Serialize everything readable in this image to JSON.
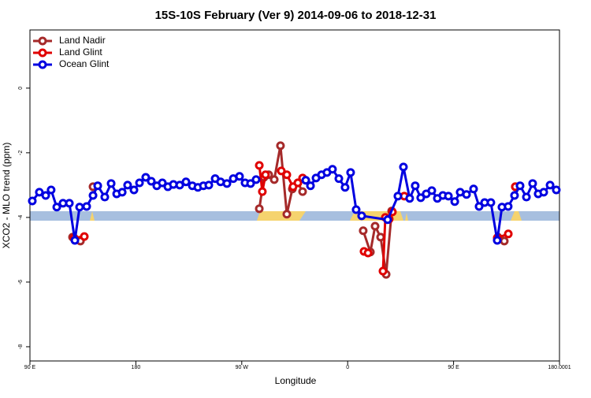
{
  "chart_data": {
    "type": "line",
    "title": "15S-10S February (Ver 9)   2014-09-06 to 2018-12-31",
    "x_label": "Longitude",
    "y_label": "XCO2 - MLO trend (ppm)",
    "xlim": [
      90,
      540
    ],
    "xticks": [
      {
        "value": 90,
        "label": "90 E"
      },
      180,
      {
        "value": 270,
        "label": "90 W"
      },
      {
        "value": 360,
        "label": "0"
      },
      {
        "value": 450,
        "label": "90 E"
      },
      180.0001
    ],
    "ylim": [
      -8.44,
      1.8
    ],
    "yticks": [
      0,
      -2,
      -4,
      -6,
      -8
    ],
    "legend": "top-left",
    "series": [
      {
        "name": "Land Nadir",
        "color": "#a52a2a",
        "x": [
          126.2,
          132.9,
          null,
          143.6,
          null,
          284.9,
          288.9,
          292.9,
          297.6,
          302.9,
          308.3,
          313.0,
          317.7,
          321.7,
          null,
          373.2,
          379.3,
          383.3,
          388.0,
          392.7,
          397.4,
          null,
          487.7,
          493.1,
          null,
          502.5
        ],
        "values": [
          -4.61,
          -4.73,
          null,
          -3.05,
          null,
          -3.73,
          -2.76,
          -2.68,
          -2.83,
          -1.78,
          -3.9,
          -3.12,
          -2.93,
          -3.2,
          null,
          -4.41,
          -5.07,
          -4.27,
          -4.61,
          -5.76,
          -3.8,
          null,
          -4.61,
          -4.73,
          null,
          -3.05
        ]
      },
      {
        "name": "Land Glint",
        "color": "#e00000",
        "x": [
          127.5,
          136.2,
          null,
          284.9,
          287.5,
          290.2,
          null,
          303.6,
          308.3,
          313.6,
          317.7,
          321.7,
          null,
          373.9,
          377.3,
          null,
          390.0,
          392.0,
          395.3,
          398.0,
          null,
          408.1,
          null,
          487.1,
          496.5,
          null,
          502.5
        ],
        "values": [
          -4.63,
          -4.59,
          null,
          -2.39,
          -3.2,
          -2.68,
          null,
          -2.56,
          -2.68,
          -3.05,
          -2.93,
          -2.78,
          null,
          -5.05,
          -5.1,
          null,
          -5.66,
          -4.0,
          -4.05,
          -3.83,
          null,
          -3.34,
          null,
          -4.63,
          -4.51,
          null,
          -3.05
        ]
      },
      {
        "name": "Ocean Glint",
        "color": "#0000e0",
        "x": [
          92.0,
          98.0,
          103.4,
          108.0,
          112.8,
          118.1,
          123.5,
          128.2,
          132.2,
          138.2,
          143.6,
          147.6,
          153.6,
          159.0,
          163.7,
          168.4,
          173.0,
          178.4,
          183.1,
          188.4,
          193.1,
          197.8,
          202.5,
          207.2,
          211.9,
          217.3,
          222.6,
          228.0,
          232.7,
          237.4,
          242.0,
          247.4,
          252.0,
          257.4,
          262.8,
          268.1,
          272.8,
          277.5,
          282.2,
          null,
          324.4,
          328.4,
          333.1,
          337.8,
          342.4,
          347.1,
          352.5,
          357.8,
          362.5,
          367.2,
          371.9,
          394.0,
          402.7,
          407.4,
          412.7,
          417.4,
          422.1,
          426.8,
          431.5,
          436.2,
          440.9,
          445.6,
          451.0,
          455.6,
          461.0,
          467.0,
          471.7,
          476.4,
          481.7,
          487.1,
          491.1,
          496.4,
          501.8,
          506.5,
          511.9,
          517.2,
          521.9,
          526.6,
          532.0,
          537.3
        ],
        "values": [
          -3.49,
          -3.22,
          -3.32,
          -3.15,
          -3.68,
          -3.56,
          -3.56,
          -4.71,
          -3.68,
          -3.66,
          -3.32,
          -3.02,
          -3.37,
          -2.95,
          -3.27,
          -3.22,
          -3.0,
          -3.15,
          -2.93,
          -2.76,
          -2.88,
          -3.02,
          -2.93,
          -3.05,
          -2.98,
          -3.0,
          -2.9,
          -3.02,
          -3.07,
          -3.02,
          -3.0,
          -2.8,
          -2.9,
          -2.95,
          -2.8,
          -2.73,
          -2.93,
          -2.95,
          -2.83,
          null,
          -2.85,
          -3.02,
          -2.78,
          -2.68,
          -2.61,
          -2.51,
          -2.8,
          -3.07,
          -2.61,
          -3.76,
          -3.95,
          -4.07,
          -3.34,
          -2.44,
          -3.41,
          -3.02,
          -3.39,
          -3.27,
          -3.17,
          -3.41,
          -3.32,
          -3.34,
          -3.51,
          -3.22,
          -3.29,
          -3.12,
          -3.66,
          -3.54,
          -3.54,
          -4.71,
          -3.68,
          -3.66,
          -3.32,
          -3.02,
          -3.37,
          -2.95,
          -3.27,
          -3.22,
          -3.0,
          -3.15
        ]
      }
    ]
  }
}
